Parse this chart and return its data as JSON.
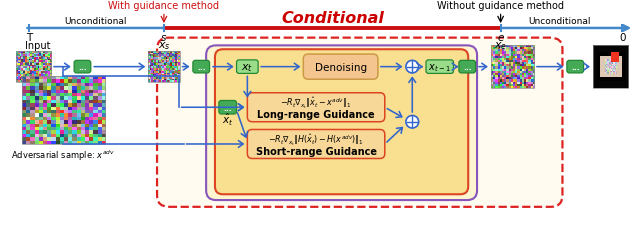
{
  "bg_color": "#ffffff",
  "conditional_label": "Conditional",
  "conditional_color": "#cc0000",
  "with_guidance_label": "With guidance method",
  "without_guidance_label": "Without guidance method",
  "unconditional_label": "Unconditional",
  "input_label": "Input",
  "xs_label": "$x_s$",
  "xt_label": "$x_t$",
  "xt1_label": "$x_{t-1}$",
  "xe_label": "$x_e$",
  "xhat_label": "$\\hat{x}_t$",
  "T_label": "T",
  "s_label": "s",
  "e_label": "e",
  "zero_label": "0",
  "denoising_label": "Denoising",
  "longrange_label": "Long-range Guidance",
  "shortrange_label": "Short-range Guidance",
  "longrange_eq": "$-R_t\\nabla_{x_t}\\|\\hat{x}_t - x^{adv}\\|_1$",
  "shortrange_eq": "$-R_t\\nabla_{x_t}\\|H(\\hat{x}_t) - H(x^{adv})\\|_1$",
  "adv_label": "Adversarial sample: $x^{adv}$",
  "green_color": "#44aa55",
  "green_light": "#99dd88",
  "green_edge": "#228833",
  "denoising_color": "#f5c590",
  "denoising_edge": "#cc9944",
  "guidance_fill_outer": "#fdf5d0",
  "guidance_fill_inner": "#f8e090",
  "guidance_edge_inner": "#dd4422",
  "outer_edge_red": "#dd2222",
  "purple_edge": "#8855bb",
  "arrow_blue": "#3366cc",
  "timeline_blue": "#4488cc",
  "timeline_red": "#cc1111"
}
